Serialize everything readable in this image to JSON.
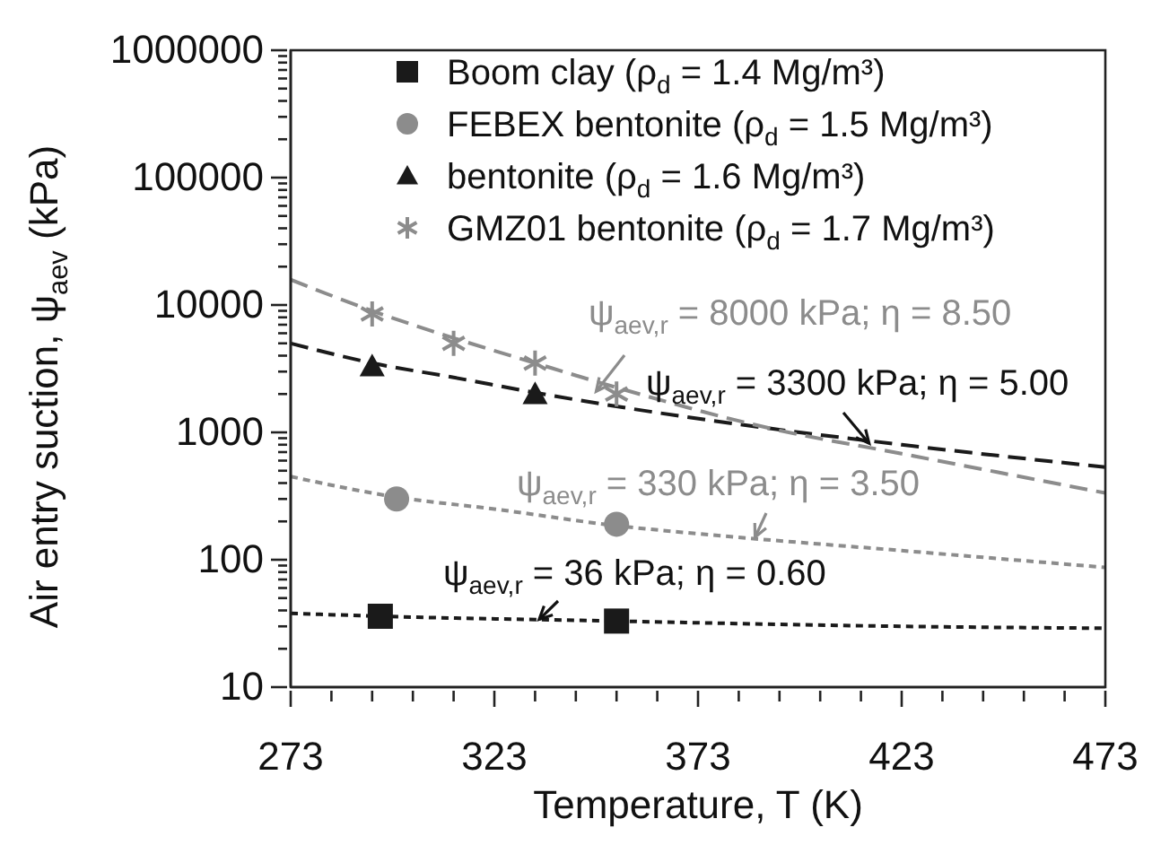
{
  "chart_data": {
    "type": "scatter",
    "xlabel": "Temperature, T (K)",
    "ylabel": "Air entry suction, ψ$_{aev}$ (kPa)",
    "log": "y",
    "legend": "top",
    "xlim": [
      273,
      473
    ],
    "ylim": [
      10,
      1000000
    ],
    "xticks": [
      273,
      {
        "value": 283,
        "label": null
      },
      {
        "value": 293,
        "label": null
      },
      {
        "value": 303,
        "label": null
      },
      {
        "value": 313,
        "label": null
      },
      323,
      {
        "value": 333,
        "label": null
      },
      {
        "value": 343,
        "label": null
      },
      {
        "value": 353,
        "label": null
      },
      {
        "value": 363,
        "label": null
      },
      373,
      {
        "value": 383,
        "label": null
      },
      {
        "value": 393,
        "label": null
      },
      {
        "value": 403,
        "label": null
      },
      {
        "value": 413,
        "label": null
      },
      423,
      {
        "value": 433,
        "label": null
      },
      {
        "value": 443,
        "label": null
      },
      {
        "value": 453,
        "label": null
      },
      {
        "value": 463,
        "label": null
      },
      473
    ],
    "yticks": [
      10,
      {
        "value": 20,
        "label": null
      },
      {
        "value": 30,
        "label": null
      },
      {
        "value": 40,
        "label": null
      },
      {
        "value": 50,
        "label": null
      },
      {
        "value": 60,
        "label": null
      },
      {
        "value": 70,
        "label": null
      },
      {
        "value": 80,
        "label": null
      },
      {
        "value": 90,
        "label": null
      },
      100,
      {
        "value": 200,
        "label": null
      },
      {
        "value": 300,
        "label": null
      },
      {
        "value": 400,
        "label": null
      },
      {
        "value": 500,
        "label": null
      },
      {
        "value": 600,
        "label": null
      },
      {
        "value": 700,
        "label": null
      },
      {
        "value": 800,
        "label": null
      },
      {
        "value": 900,
        "label": null
      },
      1000,
      {
        "value": 2000,
        "label": null
      },
      {
        "value": 3000,
        "label": null
      },
      {
        "value": 4000,
        "label": null
      },
      {
        "value": 5000,
        "label": null
      },
      {
        "value": 6000,
        "label": null
      },
      {
        "value": 7000,
        "label": null
      },
      {
        "value": 8000,
        "label": null
      },
      {
        "value": 9000,
        "label": null
      },
      10000,
      {
        "value": 20000,
        "label": null
      },
      {
        "value": 30000,
        "label": null
      },
      {
        "value": 40000,
        "label": null
      },
      {
        "value": 50000,
        "label": null
      },
      {
        "value": 60000,
        "label": null
      },
      {
        "value": 70000,
        "label": null
      },
      {
        "value": 80000,
        "label": null
      },
      {
        "value": 90000,
        "label": null
      },
      100000,
      {
        "value": 200000,
        "label": null
      },
      {
        "value": 300000,
        "label": null
      },
      {
        "value": 400000,
        "label": null
      },
      {
        "value": 500000,
        "label": null
      },
      {
        "value": 600000,
        "label": null
      },
      {
        "value": 700000,
        "label": null
      },
      {
        "value": 800000,
        "label": null
      },
      {
        "value": 900000,
        "label": null
      },
      1000000
    ],
    "series": [
      {
        "name": "Boom clay (ρ$_{d}$ = 1.4 Mg/m³)",
        "color": "#1a1a1a",
        "marker": "square",
        "x": [
          295,
          353
        ],
        "values": [
          36,
          33
        ]
      },
      {
        "name": "FEBEX bentonite (ρ$_{d}$ = 1.5 Mg/m³)",
        "color": "#8c8c8c",
        "marker": "circle",
        "x": [
          299,
          353
        ],
        "values": [
          300,
          190
        ]
      },
      {
        "name": "bentonite (ρ$_{d}$ = 1.6 Mg/m³)",
        "color": "#1a1a1a",
        "marker": "triangle",
        "x": [
          293,
          333
        ],
        "values": [
          3300,
          2000
        ]
      },
      {
        "name": "GMZ01 bentonite (ρ$_{d}$ = 1.7 Mg/m³)",
        "color": "#8c8c8c",
        "marker": "cross",
        "x": [
          293,
          313,
          333,
          353
        ],
        "values": [
          8500,
          5000,
          3500,
          2000
        ]
      },
      {
        "type": "line",
        "color": "#1a1a1a",
        "line_style": "dotted",
        "marker": "none",
        "x": [
          273,
          295,
          353,
          373,
          423,
          473
        ],
        "values": [
          38,
          36,
          33,
          32,
          30,
          29
        ]
      },
      {
        "type": "line",
        "color": "#8c8c8c",
        "line_style": "dotted",
        "marker": "none",
        "x": [
          273,
          299,
          323,
          353,
          373,
          423,
          473
        ],
        "values": [
          450,
          310,
          250,
          185,
          160,
          118,
          87
        ]
      },
      {
        "type": "line",
        "color": "#1a1a1a",
        "line_style": "dashed",
        "marker": "none",
        "x": [
          273,
          293,
          313,
          333,
          353,
          391,
          423,
          473
        ],
        "values": [
          5000,
          3500,
          2700,
          2050,
          1600,
          1070,
          800,
          533
        ]
      },
      {
        "type": "line",
        "color": "#8c8c8c",
        "line_style": "dashed",
        "marker": "none",
        "x": [
          273,
          293,
          313,
          333,
          353,
          391,
          423,
          473
        ],
        "values": [
          15800,
          9000,
          5500,
          3500,
          2250,
          1070,
          680,
          334
        ]
      }
    ],
    "annotations": [
      {
        "text": "ψ$_{aev,r}$ = 8000 kPa; η = 8.50",
        "x": 348,
        "y": 2100
      },
      {
        "text": "ψ$_{aev,r}$ = 3300 kPa; η = 5.00",
        "x": 415,
        "y": 820
      },
      {
        "text": "ψ$_{aev,r}$ = 330 kPa; η = 3.50",
        "x": 387,
        "y": 150
      },
      {
        "text": "ψ$_{aev,r}$ = 36 kPa; η = 0.60",
        "x": 334,
        "y": 34
      }
    ]
  }
}
